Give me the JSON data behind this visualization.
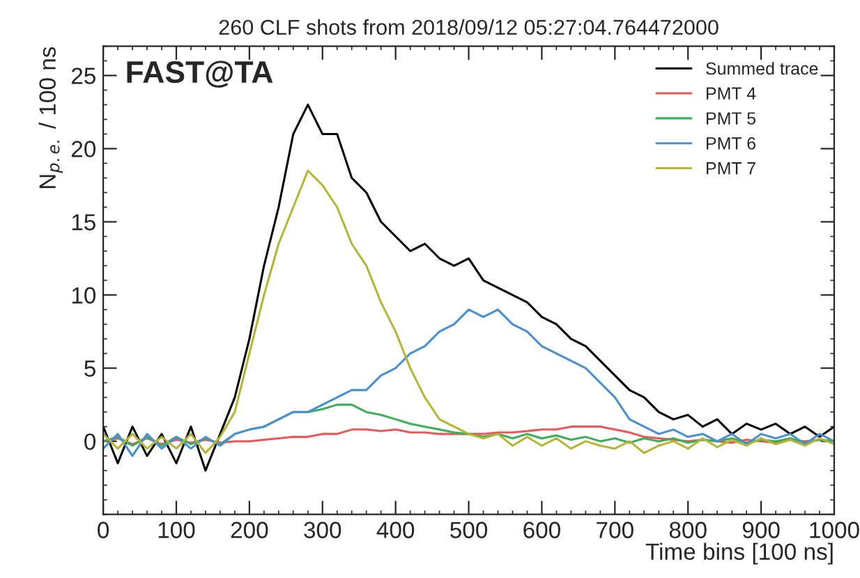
{
  "chart_data": {
    "type": "line",
    "title": "260 CLF shots from 2018/09/12 05:27:04.764472000",
    "xlabel": "Time bins [100 ns]",
    "ylabel": "N$_{p.e.}$ / 100 ns",
    "annotations": [
      "FAST@TA"
    ],
    "x": [
      0,
      20,
      40,
      60,
      80,
      100,
      120,
      140,
      160,
      180,
      200,
      220,
      240,
      260,
      280,
      300,
      320,
      340,
      360,
      380,
      400,
      420,
      440,
      460,
      480,
      500,
      520,
      540,
      560,
      580,
      600,
      620,
      640,
      660,
      680,
      700,
      720,
      740,
      760,
      780,
      800,
      820,
      840,
      860,
      880,
      900,
      920,
      940,
      960,
      980,
      1000
    ],
    "series": [
      {
        "name": "Summed trace",
        "color": "#000000",
        "values": [
          1,
          -1.5,
          1,
          -1,
          0.5,
          -1.5,
          1,
          -2,
          0.5,
          3,
          7,
          12,
          16,
          21,
          23,
          21,
          21,
          18,
          17,
          15,
          14,
          13,
          13.5,
          12.5,
          12,
          12.5,
          11,
          10.5,
          10,
          9.5,
          8.5,
          8,
          7,
          6.5,
          5.5,
          4.5,
          3.5,
          3,
          2,
          1.5,
          1.8,
          1,
          1.5,
          0.5,
          1.2,
          0.8,
          1.2,
          0.5,
          1,
          0.3,
          1
        ]
      },
      {
        "name": "PMT 4",
        "color": "#e8585a",
        "values": [
          0,
          0.2,
          -0.2,
          0.2,
          -0.2,
          0.1,
          -0.1,
          0.1,
          -0.1,
          0,
          0,
          0.1,
          0.2,
          0.3,
          0.3,
          0.5,
          0.5,
          0.8,
          0.8,
          0.7,
          0.8,
          0.6,
          0.6,
          0.5,
          0.5,
          0.5,
          0.5,
          0.6,
          0.6,
          0.7,
          0.8,
          0.8,
          1,
          1,
          1,
          0.8,
          0.6,
          0.3,
          0.2,
          0.1,
          0,
          0.1,
          0,
          -0.1,
          0.1,
          0,
          -0.1,
          0.1,
          0,
          0.1,
          0
        ]
      },
      {
        "name": "PMT 5",
        "color": "#3cae5a",
        "values": [
          0,
          0.3,
          -0.3,
          0.3,
          -0.3,
          0.3,
          -0.2,
          0.2,
          -0.2,
          0.5,
          0.8,
          1,
          1.5,
          2,
          2,
          2.2,
          2.5,
          2.5,
          2,
          1.8,
          1.5,
          1.2,
          1,
          0.8,
          0.6,
          0.5,
          0.3,
          0.5,
          0.2,
          0.5,
          0.2,
          0.4,
          0.1,
          0.3,
          0,
          0.2,
          -0.1,
          0.2,
          0,
          0.2,
          -0.1,
          0.1,
          0,
          0.2,
          -0.1,
          0.1,
          0,
          0.2,
          -0.1,
          0.1,
          0
        ]
      },
      {
        "name": "PMT 6",
        "color": "#4a8fd0",
        "values": [
          -0.5,
          0.5,
          -1,
          0.5,
          -0.5,
          0.3,
          -0.5,
          0.3,
          -0.3,
          0.5,
          0.8,
          1,
          1.5,
          2,
          2,
          2.5,
          3,
          3.5,
          3.5,
          4.5,
          5,
          6,
          6.5,
          7.5,
          8,
          9,
          8.5,
          9,
          8,
          7.5,
          6.5,
          6,
          5.5,
          5,
          4,
          3,
          1.5,
          1,
          0.5,
          0.8,
          0.3,
          0.5,
          0,
          0.5,
          -0.2,
          0.5,
          0.2,
          0.5,
          -0.2,
          0.5,
          0
        ]
      },
      {
        "name": "PMT 7",
        "color": "#b5b535",
        "values": [
          0.5,
          -0.5,
          0.5,
          -0.5,
          0.3,
          -0.5,
          0.5,
          -0.8,
          0.3,
          2,
          6,
          10,
          13.5,
          16,
          18.5,
          17.5,
          16,
          13.5,
          12,
          9.5,
          7.5,
          5,
          3,
          1.5,
          1,
          0.5,
          0.2,
          0.5,
          -0.3,
          0.3,
          -0.3,
          0.2,
          -0.5,
          0,
          -0.3,
          -0.5,
          0,
          -0.8,
          -0.3,
          0,
          -0.5,
          0.2,
          -0.4,
          0.1,
          -0.3,
          0.2,
          -0.2,
          0.1,
          -0.3,
          0.2,
          -0.2
        ]
      }
    ],
    "xlim": [
      0,
      1000
    ],
    "xticks": [
      0,
      100,
      200,
      300,
      400,
      500,
      600,
      700,
      800,
      900,
      1000
    ],
    "ylim": [
      -5,
      27
    ],
    "yticks": [
      0,
      5,
      10,
      15,
      20,
      25
    ],
    "legend": "top right"
  }
}
